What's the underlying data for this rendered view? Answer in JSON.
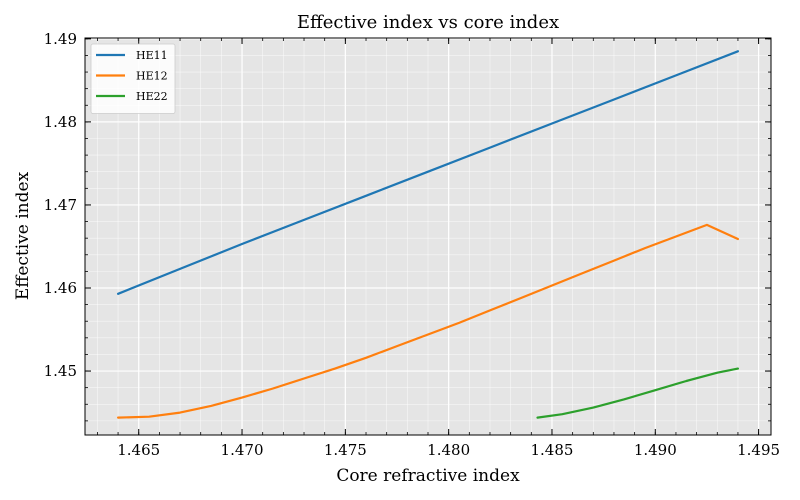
{
  "chart_data": {
    "type": "line",
    "title": "Effective index vs core index",
    "xlabel": "Core refractive index",
    "ylabel": "Effective index",
    "xlim": [
      1.4624,
      1.4956
    ],
    "ylim": [
      1.4423,
      1.4901
    ],
    "xticks": [
      "1.465",
      "1.470",
      "1.475",
      "1.480",
      "1.485",
      "1.490",
      "1.495"
    ],
    "yticks": [
      "1.45",
      "1.46",
      "1.47",
      "1.48",
      "1.49"
    ],
    "grid": true,
    "background": "#e5e5e5",
    "legend_position": "top-left",
    "series": [
      {
        "name": "HE11",
        "color": "#1f77b4",
        "x": [
          1.464,
          1.467,
          1.47,
          1.473,
          1.476,
          1.479,
          1.482,
          1.485,
          1.488,
          1.491,
          1.494
        ],
        "y": [
          1.4593,
          1.4623,
          1.4653,
          1.4682,
          1.4711,
          1.474,
          1.4769,
          1.4798,
          1.4827,
          1.4856,
          1.4885
        ]
      },
      {
        "name": "HE12",
        "color": "#ff7f0e",
        "x": [
          1.464,
          1.4655,
          1.467,
          1.4685,
          1.47,
          1.4715,
          1.473,
          1.4745,
          1.476,
          1.4775,
          1.479,
          1.4805,
          1.482,
          1.4835,
          1.485,
          1.4865,
          1.488,
          1.4895,
          1.491,
          1.4925,
          1.494
        ],
        "y": [
          1.4444,
          1.4445,
          1.445,
          1.4458,
          1.4468,
          1.4479,
          1.4491,
          1.4503,
          1.4516,
          1.453,
          1.4544,
          1.4558,
          1.4573,
          1.4588,
          1.4603,
          1.4618,
          1.4633,
          1.4648,
          1.4662,
          1.4676,
          1.4659
        ]
      },
      {
        "name": "HE22",
        "color": "#2ca02c",
        "x": [
          1.4843,
          1.4855,
          1.487,
          1.4885,
          1.49,
          1.4915,
          1.493,
          1.494
        ],
        "y": [
          1.4444,
          1.4448,
          1.4456,
          1.4466,
          1.4477,
          1.4488,
          1.4498,
          1.4503
        ]
      }
    ]
  }
}
